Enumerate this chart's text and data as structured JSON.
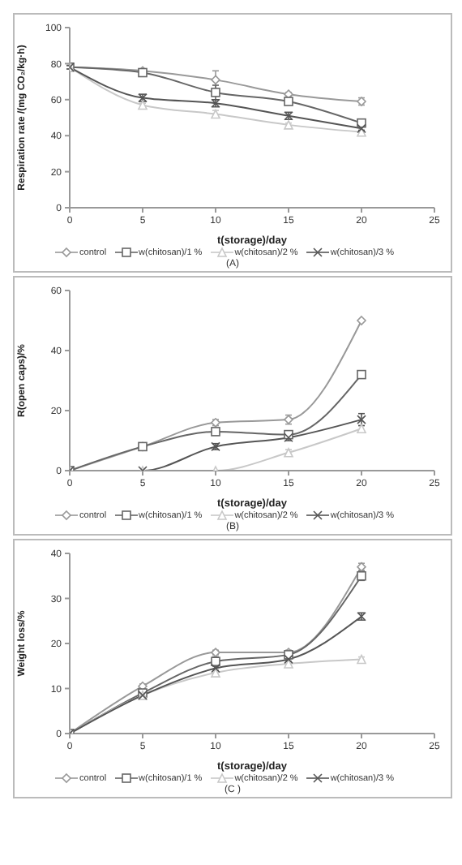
{
  "chart_data": [
    {
      "type": "line",
      "ylabel": "Respiration rate /(mg CO₂/kg·h)",
      "xlabel": "t(storage)/day",
      "annotations": [
        "(A)"
      ],
      "x": [
        0,
        5,
        10,
        15,
        20
      ],
      "xlim": [
        0,
        25
      ],
      "xticks": [
        0,
        5,
        10,
        15,
        20,
        25
      ],
      "ylim": [
        0,
        100
      ],
      "yticks": [
        0,
        20,
        40,
        60,
        80,
        100
      ],
      "grid": false,
      "legend": "bottom",
      "line_style": "solid",
      "series": [
        {
          "name": "control",
          "color": "#999999",
          "marker": "diamond",
          "values": [
            78,
            76,
            71,
            63,
            59
          ],
          "errors": [
            1,
            1,
            5,
            1,
            2
          ]
        },
        {
          "name": "w(chitosan)/1 %",
          "color": "#666666",
          "marker": "square",
          "values": [
            78,
            75,
            64,
            59,
            47
          ],
          "errors": [
            1,
            2,
            4,
            1,
            2
          ]
        },
        {
          "name": "w(chitosan)/2 %",
          "color": "#c8c8c8",
          "marker": "triangle",
          "values": [
            78,
            57,
            52,
            46,
            42
          ],
          "errors": [
            1,
            1,
            2,
            1,
            1
          ]
        },
        {
          "name": "w(chitosan)/3 %",
          "color": "#555555",
          "marker": "cross",
          "values": [
            78,
            61,
            58,
            51,
            44
          ],
          "errors": [
            1,
            2,
            2,
            2,
            1
          ]
        }
      ]
    },
    {
      "type": "line",
      "ylabel": "R(open caps)/%",
      "xlabel": "t(storage)/day",
      "annotations": [
        "(B)"
      ],
      "x": [
        0,
        5,
        10,
        15,
        20
      ],
      "xlim": [
        0,
        25
      ],
      "xticks": [
        0,
        5,
        10,
        15,
        20,
        25
      ],
      "ylim": [
        0,
        60
      ],
      "yticks": [
        0,
        20,
        40,
        60
      ],
      "grid": false,
      "legend": "bottom",
      "line_style": "solid",
      "series": [
        {
          "name": "control",
          "color": "#999999",
          "marker": "diamond",
          "values": [
            0,
            8,
            16,
            17,
            50
          ],
          "errors": [
            null,
            1,
            1,
            1.5,
            null
          ]
        },
        {
          "name": "w(chitosan)/1 %",
          "color": "#666666",
          "marker": "square",
          "values": [
            0,
            8,
            13,
            12,
            32
          ],
          "errors": [
            null,
            null,
            1,
            1,
            1
          ]
        },
        {
          "name": "w(chitosan)/2 %",
          "color": "#c8c8c8",
          "marker": "triangle",
          "values": [
            0,
            0,
            0,
            6,
            14
          ],
          "errors": [
            null,
            null,
            null,
            1,
            1
          ]
        },
        {
          "name": "w(chitosan)/3 %",
          "color": "#555555",
          "marker": "cross",
          "values": [
            0,
            0,
            8,
            11,
            17
          ],
          "errors": [
            null,
            null,
            1,
            1,
            2
          ]
        }
      ]
    },
    {
      "type": "line",
      "ylabel": "Weight loss/%",
      "xlabel": "t(storage)/day",
      "annotations": [
        "(C )"
      ],
      "x": [
        0,
        5,
        10,
        15,
        20
      ],
      "xlim": [
        0,
        25
      ],
      "xticks": [
        0,
        5,
        10,
        15,
        20,
        25
      ],
      "ylim": [
        0,
        40
      ],
      "yticks": [
        0,
        10,
        20,
        30,
        40
      ],
      "grid": false,
      "legend": "bottom",
      "line_style": "solid",
      "series": [
        {
          "name": "control",
          "color": "#999999",
          "marker": "diamond",
          "values": [
            0,
            10.5,
            18,
            18,
            37
          ],
          "errors": [
            null,
            0.5,
            0.5,
            0.5,
            0.8
          ]
        },
        {
          "name": "w(chitosan)/1 %",
          "color": "#666666",
          "marker": "square",
          "values": [
            0,
            9,
            16,
            17.5,
            35
          ],
          "errors": [
            null,
            0.5,
            1,
            0.8,
            1
          ]
        },
        {
          "name": "w(chitosan)/2 %",
          "color": "#c8c8c8",
          "marker": "triangle",
          "values": [
            0,
            8.5,
            13.5,
            15.5,
            16.5
          ],
          "errors": [
            null,
            0.5,
            0.5,
            0.5,
            0.5
          ]
        },
        {
          "name": "w(chitosan)/3 %",
          "color": "#555555",
          "marker": "cross",
          "values": [
            0,
            8.5,
            14.5,
            16.5,
            26
          ],
          "errors": [
            null,
            0.5,
            0.5,
            0.5,
            0.8
          ]
        }
      ]
    }
  ]
}
